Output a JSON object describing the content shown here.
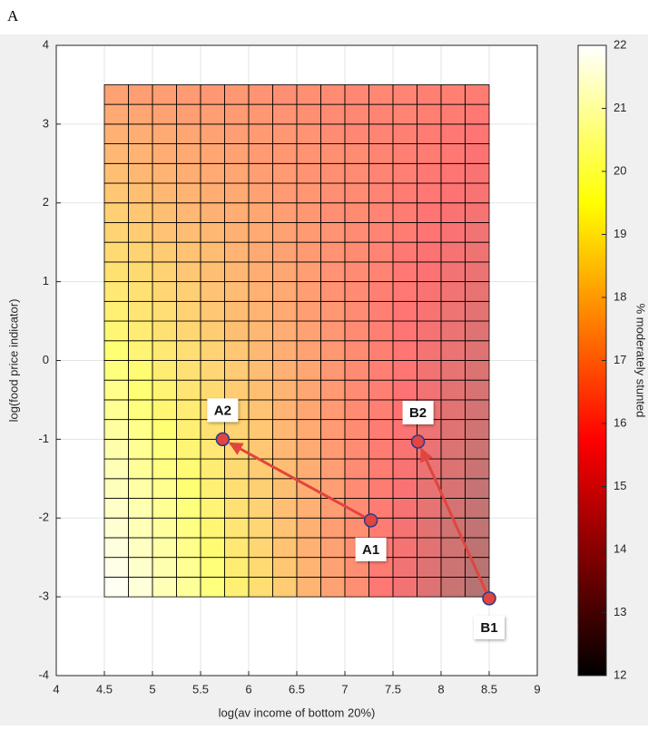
{
  "panel_label": "A",
  "chart_data": {
    "type": "heatmap",
    "xlabel": "log(av income of bottom 20%)",
    "ylabel": "log(food price indicator)",
    "colorbar_label": "% moderately stunted",
    "colormap": "hot",
    "clim": [
      12,
      22
    ],
    "cticks": [
      12,
      13,
      14,
      15,
      16,
      17,
      18,
      19,
      20,
      21,
      22
    ],
    "xlim": [
      4,
      9
    ],
    "ylim": [
      -4,
      4
    ],
    "xticks": [
      4,
      4.5,
      5,
      5.5,
      6,
      6.5,
      7,
      7.5,
      8,
      8.5,
      9
    ],
    "yticks": [
      -4,
      -3,
      -2,
      -1,
      0,
      1,
      2,
      3,
      4
    ],
    "grid": true,
    "x_edges": [
      4.5,
      4.75,
      5,
      5.25,
      5.5,
      5.75,
      6,
      6.25,
      6.5,
      6.75,
      7,
      7.25,
      7.5,
      7.75,
      8,
      8.25,
      8.5
    ],
    "y_edges": [
      -3,
      -2.75,
      -2.5,
      -2.25,
      -2,
      -1.75,
      -1.5,
      -1.25,
      -1,
      -0.75,
      -0.5,
      -0.25,
      0,
      0.25,
      0.5,
      0.75,
      1,
      1.25,
      1.5,
      1.75,
      2,
      2.25,
      2.5,
      2.75,
      3,
      3.25,
      3.5
    ],
    "z": [
      [
        21.8,
        21.3,
        20.7,
        20.2,
        19.7,
        19.1,
        18.6,
        18.1,
        17.5,
        17.0,
        16.5,
        15.9,
        15.4,
        14.9,
        14.3,
        13.8
      ],
      [
        21.6,
        21.1,
        20.6,
        20.1,
        19.6,
        19.0,
        18.5,
        18.0,
        17.5,
        17.0,
        16.5,
        16.0,
        15.4,
        14.9,
        14.4,
        13.9
      ],
      [
        21.4,
        20.9,
        20.4,
        19.9,
        19.4,
        18.9,
        18.4,
        17.9,
        17.4,
        17.0,
        16.5,
        16.0,
        15.5,
        15.0,
        14.5,
        14.0
      ],
      [
        21.2,
        20.7,
        20.3,
        19.8,
        19.3,
        18.8,
        18.4,
        17.9,
        17.4,
        16.9,
        16.5,
        16.0,
        15.5,
        15.0,
        14.5,
        14.1
      ],
      [
        21.0,
        20.6,
        20.1,
        19.7,
        19.2,
        18.7,
        18.3,
        17.8,
        17.4,
        16.9,
        16.4,
        16.0,
        15.5,
        15.1,
        14.6,
        14.2
      ],
      [
        20.8,
        20.4,
        20.0,
        19.5,
        19.1,
        18.6,
        18.2,
        17.8,
        17.3,
        16.9,
        16.4,
        16.0,
        15.6,
        15.1,
        14.7,
        14.2
      ],
      [
        20.7,
        20.2,
        19.8,
        19.4,
        19.0,
        18.5,
        18.1,
        17.7,
        17.3,
        16.9,
        16.4,
        16.0,
        15.6,
        15.2,
        14.8,
        14.3
      ],
      [
        20.5,
        20.1,
        19.7,
        19.2,
        18.9,
        18.4,
        18.0,
        17.6,
        17.2,
        16.8,
        16.4,
        16.0,
        15.6,
        15.2,
        14.8,
        14.4
      ],
      [
        20.3,
        19.9,
        19.5,
        19.1,
        18.7,
        18.3,
        18.0,
        17.6,
        17.2,
        16.8,
        16.4,
        16.0,
        15.7,
        15.3,
        14.9,
        14.5
      ],
      [
        20.1,
        19.7,
        19.3,
        19.0,
        18.6,
        18.2,
        17.9,
        17.5,
        17.1,
        16.8,
        16.4,
        16.1,
        15.7,
        15.3,
        15.0,
        14.6
      ],
      [
        19.9,
        19.5,
        19.2,
        18.8,
        18.5,
        18.1,
        17.8,
        17.5,
        17.1,
        16.8,
        16.4,
        16.1,
        15.7,
        15.4,
        15.0,
        14.7
      ],
      [
        19.7,
        19.4,
        19.0,
        18.7,
        18.4,
        18.1,
        17.7,
        17.4,
        17.1,
        16.7,
        16.4,
        16.1,
        15.8,
        15.4,
        15.1,
        14.8
      ],
      [
        19.5,
        19.2,
        18.9,
        18.6,
        18.3,
        18.0,
        17.6,
        17.3,
        17.0,
        16.7,
        16.4,
        16.1,
        15.8,
        15.5,
        15.2,
        14.9
      ],
      [
        19.3,
        19.0,
        18.7,
        18.4,
        18.1,
        17.8,
        17.6,
        17.3,
        17.0,
        16.7,
        16.4,
        16.1,
        15.8,
        15.5,
        15.2,
        14.9
      ],
      [
        19.1,
        18.8,
        18.6,
        18.3,
        18.0,
        17.7,
        17.5,
        17.2,
        16.9,
        16.7,
        16.4,
        16.1,
        15.8,
        15.6,
        15.3,
        15.0
      ],
      [
        18.9,
        18.7,
        18.4,
        18.2,
        17.9,
        17.7,
        17.4,
        17.2,
        16.9,
        16.6,
        16.4,
        16.1,
        15.9,
        15.6,
        15.4,
        15.1
      ],
      [
        18.7,
        18.5,
        18.3,
        18.0,
        17.8,
        17.6,
        17.3,
        17.1,
        16.9,
        16.6,
        16.4,
        16.2,
        15.9,
        15.7,
        15.4,
        15.2
      ],
      [
        18.5,
        18.3,
        18.1,
        17.9,
        17.7,
        17.5,
        17.2,
        17.0,
        16.8,
        16.6,
        16.4,
        16.2,
        15.9,
        15.7,
        15.5,
        15.3
      ],
      [
        18.3,
        18.1,
        17.9,
        17.7,
        17.6,
        17.4,
        17.2,
        17.0,
        16.8,
        16.6,
        16.4,
        16.2,
        16.0,
        15.8,
        15.6,
        15.4
      ],
      [
        18.2,
        18.0,
        17.8,
        17.6,
        17.4,
        17.3,
        17.1,
        16.9,
        16.7,
        16.5,
        16.4,
        16.2,
        16.0,
        15.8,
        15.6,
        15.5
      ],
      [
        18.0,
        17.8,
        17.6,
        17.5,
        17.3,
        17.2,
        17.0,
        16.8,
        16.7,
        16.5,
        16.4,
        16.2,
        16.0,
        15.9,
        15.7,
        15.6
      ],
      [
        17.8,
        17.6,
        17.5,
        17.3,
        17.2,
        17.1,
        16.9,
        16.8,
        16.6,
        16.5,
        16.4,
        16.2,
        16.1,
        15.9,
        15.8,
        15.6
      ],
      [
        17.6,
        17.5,
        17.3,
        17.2,
        17.1,
        17.0,
        16.8,
        16.7,
        16.6,
        16.5,
        16.4,
        16.2,
        16.1,
        16.0,
        15.9,
        15.7
      ],
      [
        17.4,
        17.3,
        17.2,
        17.1,
        17.0,
        16.9,
        16.8,
        16.7,
        16.6,
        16.4,
        16.3,
        16.2,
        16.1,
        16.0,
        15.9,
        15.8
      ],
      [
        17.2,
        17.1,
        17.0,
        16.9,
        16.9,
        16.8,
        16.7,
        16.6,
        16.5,
        16.4,
        16.3,
        16.2,
        16.2,
        16.1,
        16.0,
        15.9
      ],
      [
        17.0,
        16.9,
        16.9,
        16.8,
        16.7,
        16.7,
        16.6,
        16.5,
        16.5,
        16.4,
        16.3,
        16.3,
        16.2,
        16.1,
        16.1,
        16.0
      ]
    ],
    "arrow_color": "#e0453f",
    "arrows": [
      {
        "start": {
          "label": "A1",
          "x": 7.27,
          "y": -2.03
        },
        "end": {
          "label": "A2",
          "x": 5.73,
          "y": -1.0
        }
      },
      {
        "start": {
          "label": "B1",
          "x": 8.5,
          "y": -3.02
        },
        "end": {
          "label": "B2",
          "x": 7.76,
          "y": -1.03
        }
      }
    ]
  }
}
